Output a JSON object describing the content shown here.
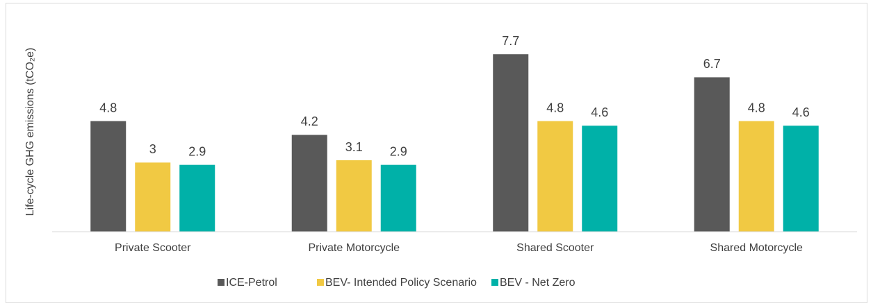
{
  "chart_data": {
    "type": "bar",
    "y_label": "Life-cycle GHG emissions (tCO₂e)",
    "categories": [
      "Private Scooter",
      "Private Motorcycle",
      "Shared Scooter",
      "Shared Motorcycle"
    ],
    "series": [
      {
        "name": "ICE-Petrol",
        "color": "#595959",
        "values": [
          4.8,
          4.2,
          7.7,
          6.7
        ]
      },
      {
        "name": "BEV- Intended Policy Scenario",
        "color": "#f1c943",
        "values": [
          3,
          3.1,
          4.8,
          4.8
        ]
      },
      {
        "name": "BEV - Net Zero",
        "color": "#00b1a8",
        "values": [
          2.9,
          2.9,
          4.6,
          4.6
        ]
      }
    ],
    "ylim": [
      0,
      9
    ],
    "legend": "bottom"
  }
}
